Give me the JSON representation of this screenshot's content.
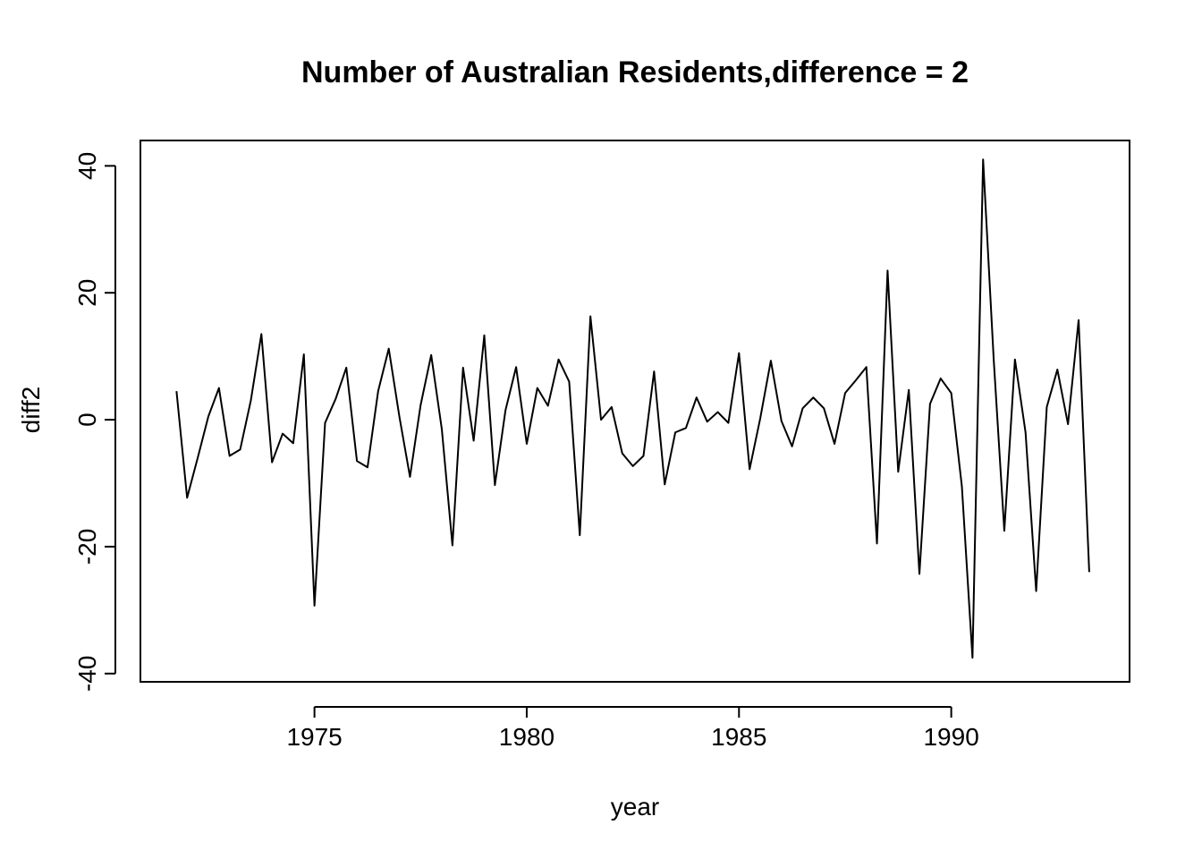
{
  "chart_data": {
    "type": "line",
    "title": "Number of Australian Residents,difference = 2",
    "xlabel": "year",
    "ylabel": "diff2",
    "x_ticks": [
      1975,
      1980,
      1985,
      1990
    ],
    "y_ticks": [
      -40,
      -20,
      0,
      20,
      40
    ],
    "xlim": [
      1970.9,
      1994.2
    ],
    "ylim": [
      -41.3,
      44.0
    ],
    "grid": false,
    "series": [
      {
        "start": 1971.75,
        "frequency": 4,
        "values": [
          4.5,
          -12.3,
          -6.0,
          0.5,
          5.0,
          -5.7,
          -4.7,
          3.0,
          13.5,
          -6.7,
          -2.2,
          -3.7,
          10.3,
          -29.3,
          -0.5,
          3.3,
          8.2,
          -6.5,
          -7.5,
          4.5,
          11.2,
          0.5,
          -9.0,
          2.3,
          10.2,
          -1.5,
          -19.8,
          8.2,
          -3.3,
          13.3,
          -10.3,
          1.5,
          8.3,
          -3.8,
          5.0,
          2.2,
          9.5,
          6.0,
          -18.2,
          16.3,
          0.0,
          2.0,
          -5.3,
          -7.3,
          -5.7,
          7.6,
          -10.2,
          -2.0,
          -1.3,
          3.5,
          -0.3,
          1.2,
          -0.5,
          10.5,
          -7.8,
          0.2,
          9.3,
          -0.2,
          -4.2,
          1.8,
          3.5,
          1.8,
          -3.8,
          4.2,
          6.2,
          8.3,
          -19.5,
          23.5,
          -8.2,
          4.7,
          -24.3,
          2.5,
          6.5,
          4.2,
          -10.5,
          -37.5,
          41.0,
          9.5,
          -17.5,
          9.5,
          -2.0,
          -27.0,
          2.0,
          7.9,
          -0.7,
          15.7,
          -24.0
        ]
      }
    ]
  }
}
